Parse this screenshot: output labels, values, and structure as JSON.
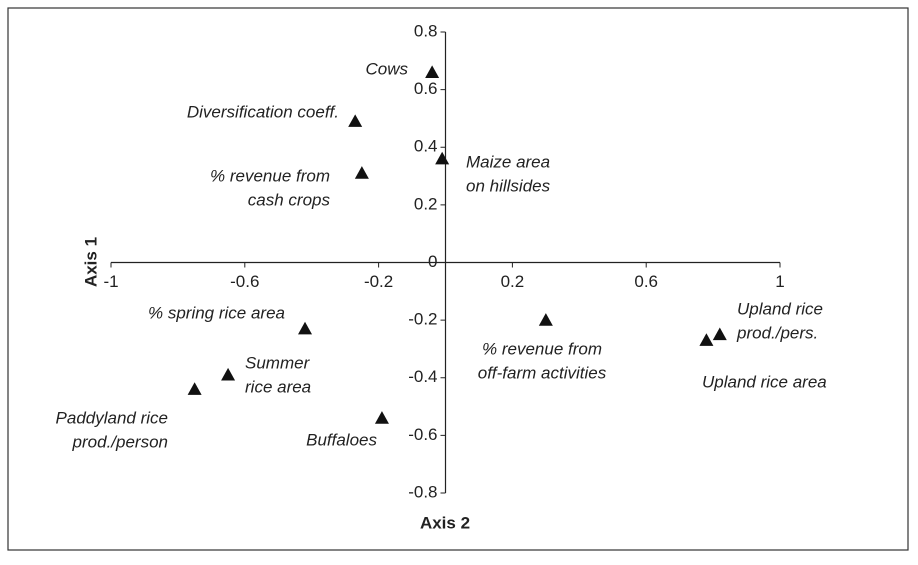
{
  "chart_data": {
    "type": "scatter",
    "x_label": "Axis 2",
    "y_label": "Axis 1",
    "x": [
      -0.04,
      -0.27,
      -0.25,
      -0.01,
      -0.42,
      -0.65,
      -0.75,
      -0.19,
      0.3,
      0.78,
      0.82
    ],
    "values": [
      0.66,
      0.49,
      0.31,
      0.36,
      -0.23,
      -0.39,
      -0.44,
      -0.54,
      -0.2,
      -0.27,
      -0.25
    ],
    "point_labels": [
      [
        "Cows"
      ],
      [
        "Diversification coeff."
      ],
      [
        "% revenue from",
        "cash crops"
      ],
      [
        "Maize area",
        "on hillsides"
      ],
      [
        "% spring rice area"
      ],
      [
        "Summer",
        "rice area"
      ],
      [
        "Paddyland rice",
        "prod./person"
      ],
      [
        "Buffaloes"
      ],
      [
        "% revenue from",
        "off-farm activities"
      ],
      [
        "Upland rice area"
      ],
      [
        "Upland rice",
        "prod./pers."
      ]
    ],
    "color": "#111111",
    "xlim": [
      -1,
      1
    ],
    "ylim": [
      -0.8,
      0.8
    ],
    "xticks": [
      -1,
      -0.6,
      -0.2,
      0.2,
      0.6,
      1
    ],
    "yticks": [
      -0.8,
      -0.6,
      -0.4,
      -0.2,
      0,
      0.2,
      0.4,
      0.6,
      0.8
    ]
  }
}
